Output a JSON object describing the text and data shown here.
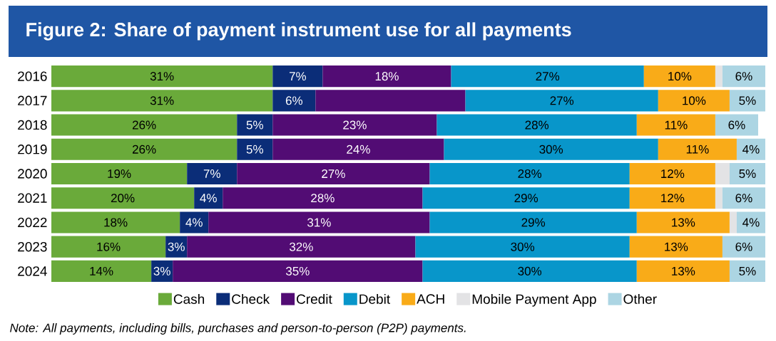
{
  "chart_data": {
    "type": "bar",
    "orientation": "horizontal",
    "stacked": true,
    "title": "Figure 2: Share of payment instrument use for all payments",
    "categories": [
      "2016",
      "2017",
      "2018",
      "2019",
      "2020",
      "2021",
      "2022",
      "2023",
      "2024"
    ],
    "xlim": [
      0,
      100
    ],
    "tick_labels": "y",
    "legend": "bottom",
    "grid": false,
    "series": [
      {
        "name": "Cash",
        "color": "#6aaa3a",
        "values": [
          31,
          31,
          26,
          26,
          19,
          20,
          18,
          16,
          14
        ],
        "value_labels": [
          "31%",
          "31%",
          "26%",
          "26%",
          "19%",
          "20%",
          "18%",
          "16%",
          "14%"
        ]
      },
      {
        "name": "Check",
        "color": "#0b2d78",
        "values": [
          7,
          6,
          5,
          5,
          7,
          4,
          4,
          3,
          3
        ],
        "value_labels": [
          "7%",
          "6%",
          "5%",
          "5%",
          "7%",
          "4%",
          "4%",
          "3%",
          "3%"
        ]
      },
      {
        "name": "Credit",
        "color": "#520c74",
        "values": [
          18,
          21,
          23,
          24,
          27,
          28,
          31,
          32,
          35
        ],
        "value_labels": [
          "18%",
          null,
          "23%",
          "24%",
          "27%",
          "28%",
          "31%",
          "32%",
          "35%"
        ]
      },
      {
        "name": "Debit",
        "color": "#0896ca",
        "values": [
          27,
          27,
          28,
          30,
          28,
          29,
          29,
          30,
          30
        ],
        "value_labels": [
          "27%",
          "27%",
          "28%",
          "30%",
          "28%",
          "29%",
          "29%",
          "30%",
          "30%"
        ]
      },
      {
        "name": "ACH",
        "color": "#f9ab18",
        "values": [
          10,
          10,
          11,
          11,
          12,
          12,
          13,
          13,
          13
        ],
        "value_labels": [
          "10%",
          "10%",
          "11%",
          "11%",
          "12%",
          "12%",
          "13%",
          "13%",
          "13%"
        ]
      },
      {
        "name": "Mobile Payment App",
        "color": "#e3e3e5",
        "values": [
          1,
          0,
          0,
          0,
          2,
          1,
          1,
          0,
          0
        ]
      },
      {
        "name": "Other",
        "color": "#acd5e3",
        "values": [
          6,
          5,
          6,
          4,
          5,
          6,
          4,
          6,
          5
        ],
        "value_labels": [
          "6%",
          "5%",
          "6%",
          "4%",
          "5%",
          "6%",
          "4%",
          "6%",
          "5%"
        ]
      }
    ],
    "annotations": [
      "Note: All payments, including bills, purchases and person-to-person (P2P) payments."
    ]
  }
}
